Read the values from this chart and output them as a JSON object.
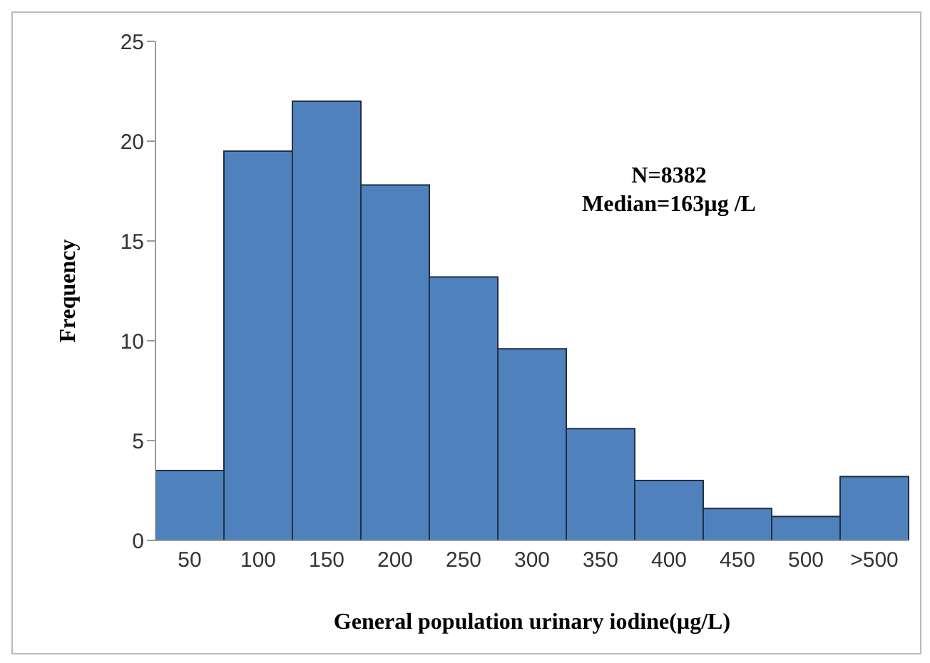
{
  "chart_data": {
    "type": "bar",
    "xlabel": "General population urinary iodine(µg/L)",
    "ylabel": "Frequency",
    "categories": [
      "50",
      "100",
      "150",
      "200",
      "250",
      "300",
      "350",
      "400",
      "450",
      "500",
      ">500"
    ],
    "values": [
      3.5,
      19.5,
      22.0,
      17.8,
      13.2,
      9.6,
      5.6,
      3.0,
      1.6,
      1.2,
      3.2
    ],
    "color": "#4f81bd",
    "ylim": [
      0,
      25
    ],
    "yticks": [
      0,
      5,
      10,
      15,
      20,
      25
    ],
    "annotations": [
      "N=8382",
      "Median=163µg /L"
    ]
  }
}
